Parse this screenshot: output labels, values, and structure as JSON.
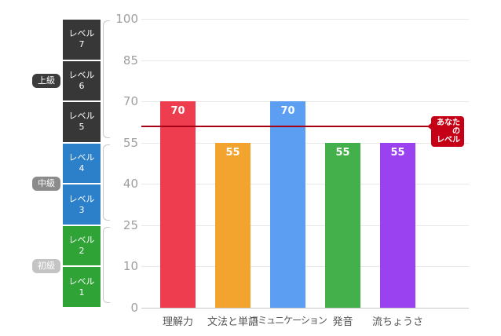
{
  "chart_data": {
    "type": "bar",
    "title": "",
    "categories": [
      "理解力",
      "文法と単語",
      "コミュニケーション",
      "発音",
      "流ちょうさ"
    ],
    "values": [
      70,
      55,
      70,
      55,
      55
    ],
    "bar_colors": [
      "#ee3d4e",
      "#f2a42e",
      "#5b9ef2",
      "#44b04b",
      "#9a41f0"
    ],
    "yticks_bottom_to_top": [
      0,
      10,
      25,
      40,
      55,
      70,
      85,
      100
    ],
    "ylim": [
      0,
      100
    ],
    "grid": true,
    "legend": "none",
    "reference_line": {
      "label": "あなたのレベル",
      "value": 61,
      "color": "#a50013"
    }
  },
  "axis": {
    "ticks": [
      "100",
      "85",
      "70",
      "55",
      "40",
      "25",
      "10",
      "0"
    ]
  },
  "levels": {
    "badges": [
      {
        "label": "上級",
        "color": "#3c3c3c"
      },
      {
        "label": "中級",
        "color": "#8b8b8b"
      },
      {
        "label": "初級",
        "color": "#c4c4c4"
      }
    ],
    "boxes": [
      {
        "label": "レベル",
        "num": "7",
        "group": "上級"
      },
      {
        "label": "レベル",
        "num": "6",
        "group": "上級"
      },
      {
        "label": "レベル",
        "num": "5",
        "group": "上級"
      },
      {
        "label": "レベル",
        "num": "4",
        "group": "中級"
      },
      {
        "label": "レベル",
        "num": "3",
        "group": "中級"
      },
      {
        "label": "レベル",
        "num": "2",
        "group": "初級"
      },
      {
        "label": "レベル",
        "num": "1",
        "group": "初級"
      }
    ]
  },
  "reference_label": {
    "line1": "あなたの",
    "line2": "レベル"
  }
}
